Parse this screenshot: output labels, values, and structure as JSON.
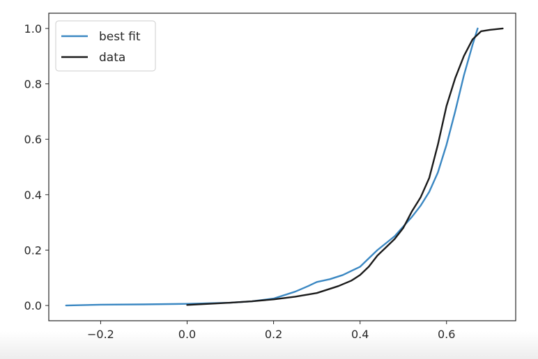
{
  "chart_data": {
    "type": "line",
    "title": "",
    "xlabel": "",
    "ylabel": "",
    "xlim": [
      -0.32,
      0.76
    ],
    "ylim": [
      -0.055,
      1.055
    ],
    "xticks": [
      -0.2,
      0.0,
      0.2,
      0.4,
      0.6
    ],
    "xtick_labels": [
      "−0.2",
      "0.0",
      "0.2",
      "0.4",
      "0.6"
    ],
    "yticks": [
      0.0,
      0.2,
      0.4,
      0.6,
      0.8,
      1.0
    ],
    "ytick_labels": [
      "0.0",
      "0.2",
      "0.4",
      "0.6",
      "0.8",
      "1.0"
    ],
    "grid": false,
    "legend_position": "top-left",
    "series": [
      {
        "name": "best fit",
        "color": "#3a87c2",
        "x": [
          -0.28,
          -0.2,
          -0.1,
          0.0,
          0.1,
          0.15,
          0.2,
          0.25,
          0.28,
          0.3,
          0.33,
          0.36,
          0.38,
          0.4,
          0.42,
          0.44,
          0.46,
          0.48,
          0.5,
          0.52,
          0.54,
          0.56,
          0.58,
          0.6,
          0.62,
          0.64,
          0.66,
          0.672
        ],
        "y": [
          0.0,
          0.003,
          0.004,
          0.006,
          0.01,
          0.015,
          0.025,
          0.05,
          0.07,
          0.085,
          0.095,
          0.11,
          0.125,
          0.14,
          0.17,
          0.2,
          0.225,
          0.25,
          0.285,
          0.32,
          0.36,
          0.41,
          0.48,
          0.58,
          0.7,
          0.83,
          0.94,
          1.0
        ]
      },
      {
        "name": "data",
        "color": "#1a1a1a",
        "x": [
          0.0,
          0.05,
          0.1,
          0.15,
          0.2,
          0.25,
          0.3,
          0.35,
          0.38,
          0.4,
          0.42,
          0.44,
          0.46,
          0.48,
          0.5,
          0.52,
          0.54,
          0.56,
          0.58,
          0.6,
          0.62,
          0.64,
          0.66,
          0.68,
          0.7,
          0.73
        ],
        "y": [
          0.002,
          0.006,
          0.01,
          0.015,
          0.022,
          0.032,
          0.045,
          0.07,
          0.09,
          0.11,
          0.14,
          0.18,
          0.21,
          0.24,
          0.28,
          0.34,
          0.39,
          0.46,
          0.58,
          0.72,
          0.82,
          0.9,
          0.96,
          0.99,
          0.995,
          1.0
        ]
      }
    ]
  }
}
